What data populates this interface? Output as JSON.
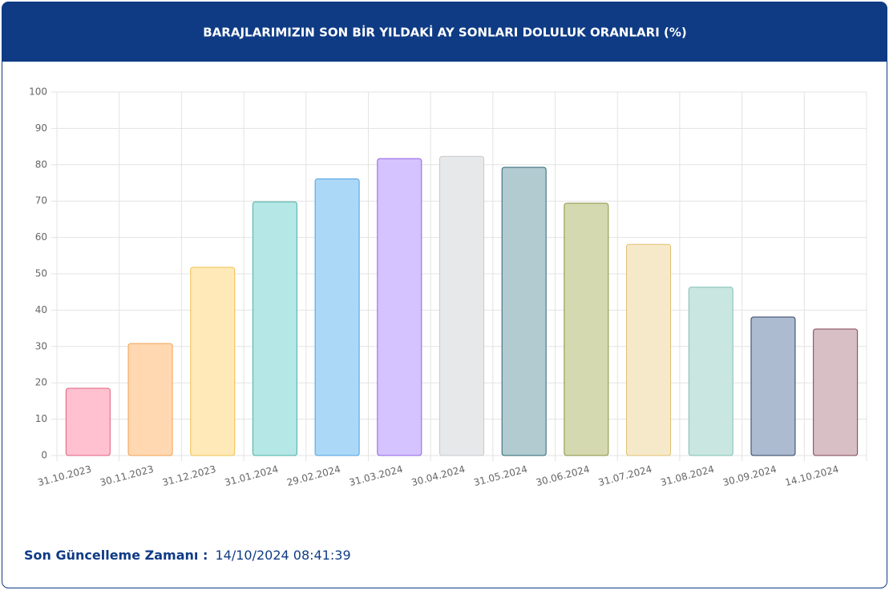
{
  "chart_data": {
    "type": "bar",
    "title": "BARAJLARIMIZIN SON BİR YILDAKİ AY SONLARI DOLULUK ORANLARI (%)",
    "categories": [
      "31.10.2023",
      "30.11.2023",
      "31.12.2023",
      "31.01.2024",
      "29.02.2024",
      "31.03.2024",
      "30.04.2024",
      "31.05.2024",
      "30.06.2024",
      "31.07.2024",
      "31.08.2024",
      "30.09.2024",
      "14.10.2024"
    ],
    "values": [
      18.5,
      30.8,
      51.8,
      69.8,
      76.1,
      81.7,
      82.3,
      79.3,
      69.4,
      58.1,
      46.3,
      38.1,
      34.8
    ],
    "colors": [
      "#ffc1d0",
      "#ffd8b1",
      "#ffe9b9",
      "#b4e7e5",
      "#acd8f7",
      "#d5c3ff",
      "#e6e8ea",
      "#b2cbd0",
      "#d4d9b0",
      "#f6e9c9",
      "#c9e6e0",
      "#adbbd0",
      "#d7bfc5"
    ],
    "border_colors": [
      "#e0607e",
      "#f0a050",
      "#f0c050",
      "#4bb0a8",
      "#4aa0e0",
      "#9060e0",
      "#c8cacd",
      "#2a6570",
      "#8a9040",
      "#e0c070",
      "#80c0b0",
      "#2c3e60",
      "#804050"
    ],
    "ylim": [
      0,
      100
    ],
    "yticks": [
      0,
      10,
      20,
      30,
      40,
      50,
      60,
      70,
      80,
      90,
      100
    ],
    "grid": true
  },
  "footer": {
    "label": "Son Güncelleme Zamanı :",
    "value": "14/10/2024 08:41:39"
  }
}
